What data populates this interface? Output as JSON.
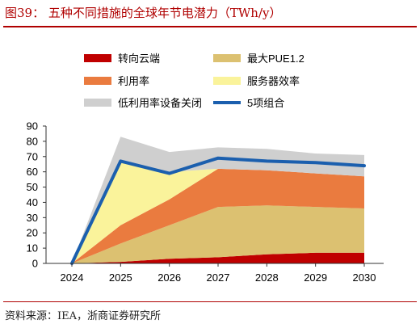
{
  "figure": {
    "title": "图39：  五种不同措施的全球年节电潜力（TWh/y）",
    "source": "资料来源：IEA，浙商证券研究所"
  },
  "chart_data": {
    "type": "area",
    "stacked": true,
    "x": [
      "2024",
      "2025",
      "2026",
      "2027",
      "2028",
      "2029",
      "2030"
    ],
    "ylim": [
      0,
      90
    ],
    "yticks": [
      0,
      10,
      20,
      30,
      40,
      50,
      60,
      70,
      80,
      90
    ],
    "grid": false,
    "series": [
      {
        "name": "转向云端",
        "color": "#c00000",
        "values": [
          0,
          1,
          3,
          4,
          6,
          7,
          7
        ]
      },
      {
        "name": "最大PUE1.2",
        "color": "#dcc171",
        "values": [
          0,
          12,
          22,
          33,
          32,
          30,
          29
        ]
      },
      {
        "name": "利用率",
        "color": "#ea7b3f",
        "values": [
          0,
          12,
          17,
          25,
          23,
          22,
          21
        ]
      },
      {
        "name": "服务器效率",
        "color": "#faf39b",
        "values": [
          0,
          42,
          18,
          0,
          0,
          0,
          0
        ]
      },
      {
        "name": "低利用率设备关闭",
        "color": "#cfcfcf",
        "values": [
          0,
          16,
          13,
          14,
          14,
          13,
          14
        ]
      }
    ],
    "line_series": {
      "name": "5项组合",
      "color": "#1b5fae",
      "values": [
        0,
        67,
        59,
        69,
        67,
        66,
        64
      ]
    },
    "legend": [
      {
        "label": "转向云端",
        "kind": "box",
        "color": "#c00000"
      },
      {
        "label": "最大PUE1.2",
        "kind": "box",
        "color": "#dcc171"
      },
      {
        "label": "利用率",
        "kind": "box",
        "color": "#ea7b3f"
      },
      {
        "label": "服务器效率",
        "kind": "box",
        "color": "#faf39b"
      },
      {
        "label": "低利用率设备关闭",
        "kind": "box",
        "color": "#cfcfcf"
      },
      {
        "label": "5项组合",
        "kind": "line",
        "color": "#1b5fae"
      }
    ],
    "legend_placement": "top"
  }
}
